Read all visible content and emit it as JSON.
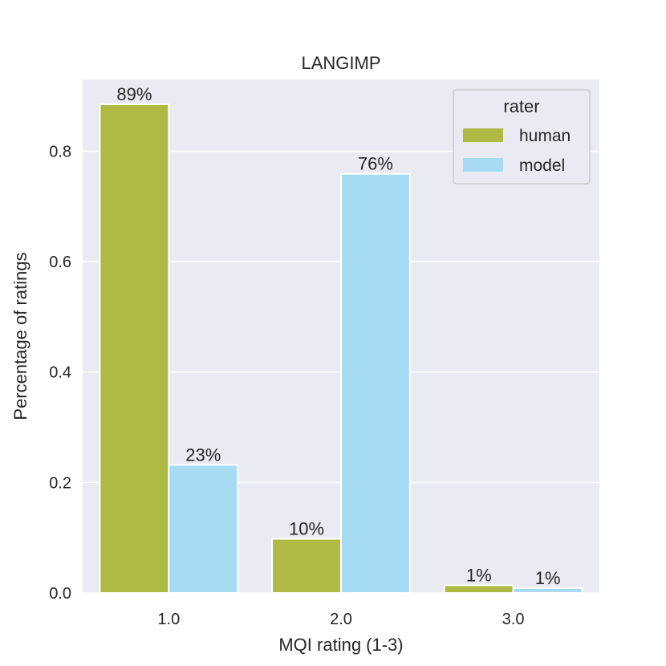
{
  "chart_data": {
    "type": "bar",
    "title": "LANGIMP",
    "xlabel": "MQI rating (1-3)",
    "ylabel": "Percentage of ratings",
    "categories": [
      "1.0",
      "2.0",
      "3.0"
    ],
    "ylim": [
      0,
      0.93
    ],
    "yticks": [
      0.0,
      0.2,
      0.4,
      0.6,
      0.8
    ],
    "ytick_labels": [
      "0.0",
      "0.2",
      "0.4",
      "0.6",
      "0.8"
    ],
    "grid": true,
    "legend": {
      "title": "rater",
      "placement": "top-right"
    },
    "series": [
      {
        "name": "human",
        "color": "#afba44",
        "values": [
          0.885,
          0.098,
          0.014
        ],
        "labels": [
          "89%",
          "10%",
          "1%"
        ]
      },
      {
        "name": "model",
        "color": "#a6dbf3",
        "values": [
          0.232,
          0.759,
          0.009
        ],
        "labels": [
          "23%",
          "76%",
          "1%"
        ]
      }
    ]
  }
}
